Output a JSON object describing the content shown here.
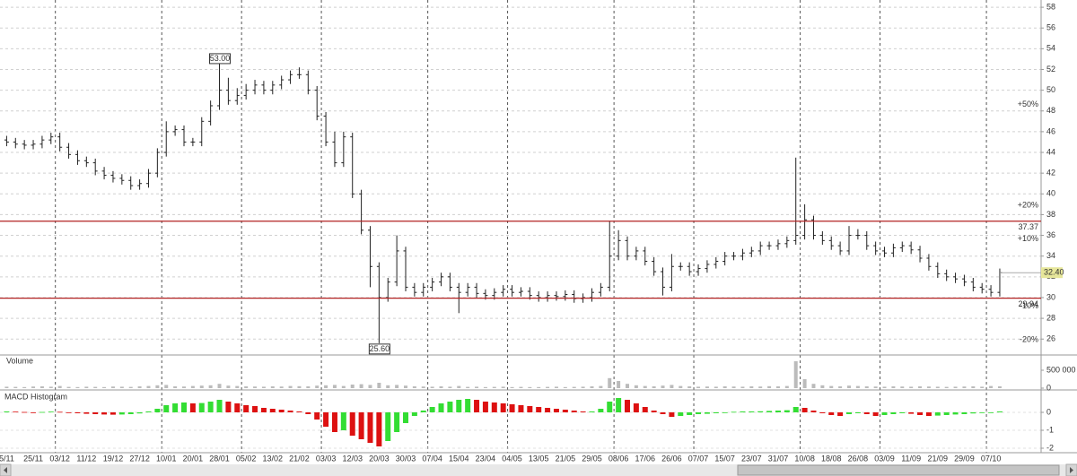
{
  "chart_data": [
    {
      "type": "ohlc",
      "categories": [
        "5/11",
        null,
        null,
        "25/11",
        null,
        null,
        "03/12",
        null,
        null,
        "11/12",
        null,
        null,
        "19/12",
        null,
        null,
        "27/12",
        null,
        null,
        "10/01",
        null,
        null,
        "20/01",
        null,
        null,
        "28/01",
        null,
        null,
        "05/02",
        null,
        null,
        "13/02",
        null,
        null,
        "21/02",
        null,
        null,
        "03/03",
        null,
        null,
        "12/03",
        null,
        null,
        "20/03",
        null,
        null,
        "30/03",
        null,
        null,
        "07/04",
        null,
        null,
        "15/04",
        null,
        null,
        "23/04",
        null,
        null,
        "04/05",
        null,
        null,
        "13/05",
        null,
        null,
        "21/05",
        null,
        null,
        "29/05",
        null,
        null,
        "08/06",
        null,
        null,
        "17/06",
        null,
        null,
        "26/06",
        null,
        null,
        "07/07",
        null,
        null,
        "15/07",
        null,
        null,
        "23/07",
        null,
        null,
        "31/07",
        null,
        null,
        "10/08",
        null,
        null,
        "18/08",
        null,
        null,
        "26/08",
        null,
        null,
        "03/09",
        null,
        null,
        "11/09",
        null,
        null,
        "21/09",
        null,
        null,
        "29/09",
        null,
        null,
        "07/10",
        null
      ],
      "open": [
        45.2,
        45.0,
        44.8,
        44.7,
        44.8,
        45.2,
        45.5,
        44.5,
        43.8,
        43.2,
        43.0,
        42.2,
        41.8,
        41.5,
        41.3,
        40.8,
        41.0,
        42.0,
        44.0,
        46.0,
        46.2,
        45.0,
        45.0,
        47.0,
        48.5,
        50.0,
        49.0,
        49.5,
        50.0,
        50.5,
        50.0,
        50.5,
        51.0,
        51.5,
        51.5,
        50.0,
        47.5,
        45.0,
        43.0,
        45.5,
        40.0,
        36.5,
        33.0,
        30.0,
        31.5,
        34.5,
        31.0,
        30.5,
        31.0,
        31.5,
        32.0,
        31.0,
        30.5,
        31.0,
        30.4,
        30.2,
        30.5,
        30.8,
        30.5,
        30.6,
        30.2,
        30.0,
        30.2,
        30.1,
        30.3,
        29.9,
        30.0,
        30.5,
        31.0,
        34.0,
        35.5,
        34.0,
        34.5,
        33.5,
        32.5,
        31.0,
        33.0,
        33.0,
        32.5,
        32.8,
        33.2,
        33.5,
        34.0,
        34.0,
        34.3,
        34.5,
        35.0,
        35.0,
        35.2,
        35.5,
        36.0,
        37.5,
        36.0,
        35.5,
        35.0,
        34.5,
        36.0,
        36.0,
        35.0,
        34.5,
        34.3,
        34.8,
        35.0,
        34.6,
        33.8,
        33.0,
        32.3,
        32.0,
        31.8,
        31.5,
        31.0,
        30.8,
        30.5
      ],
      "high": [
        45.6,
        45.4,
        45.2,
        45.2,
        45.6,
        45.9,
        45.9,
        44.9,
        44.2,
        43.6,
        43.4,
        42.6,
        42.2,
        41.9,
        41.7,
        41.4,
        42.4,
        44.4,
        47.0,
        46.6,
        46.6,
        45.4,
        47.4,
        49.0,
        53.0,
        51.2,
        50.2,
        50.6,
        51.0,
        50.9,
        50.9,
        51.4,
        51.9,
        52.2,
        51.9,
        50.4,
        47.9,
        46.0,
        46.0,
        45.9,
        40.4,
        36.9,
        33.4,
        31.9,
        36.0,
        34.9,
        31.4,
        31.4,
        31.9,
        32.4,
        32.4,
        31.4,
        31.4,
        31.4,
        30.8,
        30.9,
        31.2,
        31.2,
        31.0,
        31.0,
        30.6,
        30.6,
        30.6,
        30.7,
        30.7,
        30.4,
        30.9,
        31.4,
        37.4,
        36.5,
        35.9,
        34.9,
        34.9,
        33.9,
        32.9,
        34.2,
        33.4,
        33.4,
        33.2,
        33.6,
        33.9,
        34.4,
        34.4,
        34.7,
        34.9,
        35.4,
        35.4,
        35.6,
        35.9,
        43.5,
        39.0,
        37.9,
        36.4,
        35.9,
        35.4,
        36.9,
        36.6,
        36.4,
        35.4,
        34.9,
        35.2,
        35.4,
        35.4,
        35.0,
        34.2,
        33.4,
        32.7,
        32.4,
        32.2,
        31.9,
        31.4,
        31.2,
        32.8
      ],
      "low": [
        44.6,
        44.4,
        44.3,
        44.3,
        44.4,
        44.8,
        44.1,
        43.4,
        42.8,
        42.6,
        41.8,
        41.4,
        41.1,
        40.9,
        40.4,
        40.4,
        40.6,
        41.6,
        43.6,
        45.6,
        44.6,
        44.6,
        44.6,
        46.6,
        48.1,
        48.6,
        48.6,
        49.1,
        49.6,
        49.6,
        49.6,
        50.1,
        50.6,
        51.1,
        49.6,
        47.1,
        44.6,
        42.6,
        42.6,
        39.6,
        36.1,
        31.0,
        25.6,
        29.6,
        31.1,
        30.6,
        30.1,
        30.1,
        30.6,
        31.1,
        30.6,
        28.5,
        30.1,
        30.0,
        29.8,
        29.8,
        30.1,
        30.1,
        30.1,
        29.8,
        29.6,
        29.6,
        29.7,
        29.7,
        29.5,
        29.5,
        29.6,
        30.1,
        30.6,
        33.6,
        33.6,
        33.6,
        33.1,
        32.1,
        30.2,
        30.6,
        32.6,
        32.1,
        32.1,
        32.4,
        32.8,
        33.1,
        33.6,
        33.6,
        33.9,
        34.1,
        34.6,
        34.6,
        34.8,
        35.1,
        35.6,
        35.6,
        35.1,
        34.6,
        34.1,
        34.1,
        35.6,
        34.6,
        34.1,
        33.9,
        33.9,
        34.4,
        34.2,
        33.4,
        32.6,
        31.9,
        31.6,
        31.4,
        31.1,
        30.6,
        30.4,
        30.1,
        30.1
      ],
      "close": [
        45.0,
        44.8,
        44.7,
        44.8,
        45.2,
        45.5,
        44.5,
        43.8,
        43.2,
        43.0,
        42.2,
        41.8,
        41.5,
        41.3,
        40.8,
        41.0,
        42.0,
        44.0,
        46.0,
        46.2,
        45.0,
        45.0,
        47.0,
        48.5,
        50.0,
        49.0,
        49.5,
        50.0,
        50.5,
        50.0,
        50.5,
        51.0,
        51.5,
        51.5,
        50.0,
        47.5,
        45.0,
        43.0,
        45.5,
        40.0,
        36.5,
        33.0,
        30.0,
        31.5,
        34.5,
        31.0,
        30.5,
        31.0,
        31.5,
        32.0,
        31.0,
        30.5,
        31.0,
        30.4,
        30.2,
        30.5,
        30.8,
        30.5,
        30.6,
        30.2,
        30.0,
        30.2,
        30.1,
        30.3,
        29.9,
        30.0,
        30.5,
        31.0,
        34.0,
        35.5,
        34.0,
        34.5,
        33.5,
        32.5,
        31.0,
        33.0,
        33.0,
        32.5,
        32.8,
        33.2,
        33.5,
        34.0,
        34.0,
        34.3,
        34.5,
        35.0,
        35.0,
        35.2,
        35.5,
        36.0,
        37.5,
        36.0,
        35.5,
        35.0,
        34.5,
        36.0,
        36.0,
        35.0,
        34.5,
        34.3,
        34.8,
        35.0,
        34.6,
        33.8,
        33.0,
        32.3,
        32.0,
        31.8,
        31.5,
        31.0,
        30.8,
        30.5,
        32.4
      ],
      "color": "#222222",
      "ylim": [
        24.55,
        58.7
      ],
      "yticks": [
        26,
        28,
        30,
        32,
        34,
        36,
        38,
        40,
        42,
        44,
        46,
        48,
        50,
        52,
        54,
        56,
        58
      ],
      "grid": true,
      "hlines": [
        37.37,
        29.94
      ],
      "hline_color": "#b22222",
      "pct_labels": [
        {
          "value": 48.6,
          "label": "+50%"
        },
        {
          "value": 38.88,
          "label": "+20%"
        },
        {
          "value": 35.64,
          "label": "+10%"
        },
        {
          "value": 29.16,
          "label": "-10%"
        },
        {
          "value": 25.92,
          "label": "-20%"
        }
      ],
      "last_price": {
        "value": 32.4,
        "label": "32.40"
      },
      "annotations": [
        {
          "index": 24,
          "value": 53.0,
          "label": "53.00"
        },
        {
          "index": 42,
          "value": 25.6,
          "label": "25.60"
        }
      ]
    },
    {
      "type": "bar",
      "title": "Volume",
      "values": [
        40000,
        35000,
        30000,
        45000,
        50000,
        40000,
        60000,
        35000,
        30000,
        40000,
        35000,
        30000,
        45000,
        40000,
        35000,
        50000,
        60000,
        80000,
        90000,
        50000,
        45000,
        60000,
        70000,
        80000,
        120000,
        70000,
        60000,
        50000,
        45000,
        40000,
        50000,
        45000,
        60000,
        55000,
        50000,
        70000,
        80000,
        90000,
        60000,
        100000,
        110000,
        90000,
        150000,
        80000,
        90000,
        70000,
        50000,
        45000,
        40000,
        50000,
        40000,
        60000,
        35000,
        40000,
        30000,
        35000,
        40000,
        30000,
        35000,
        30000,
        30000,
        35000,
        40000,
        30000,
        35000,
        40000,
        50000,
        60000,
        280000,
        200000,
        120000,
        80000,
        60000,
        50000,
        70000,
        90000,
        60000,
        50000,
        40000,
        45000,
        40000,
        50000,
        45000,
        40000,
        50000,
        45000,
        55000,
        50000,
        60000,
        750000,
        250000,
        120000,
        80000,
        60000,
        50000,
        70000,
        60000,
        50000,
        45000,
        40000,
        50000,
        45000,
        40000,
        50000,
        45000,
        40000,
        35000,
        40000,
        45000,
        50000,
        40000,
        60000,
        50000
      ],
      "color": "#bbbbbb",
      "ylim": [
        0,
        875000
      ],
      "yticks": [
        0,
        {
          "value": 500000,
          "label": "500 000"
        }
      ]
    },
    {
      "type": "histogram_macd",
      "title": "MACD Histogram",
      "values": [
        0.05,
        0.04,
        0.02,
        0.0,
        0.02,
        0.04,
        0.03,
        -0.02,
        -0.05,
        -0.08,
        -0.1,
        -0.12,
        -0.13,
        -0.12,
        -0.1,
        -0.06,
        0.05,
        0.2,
        0.4,
        0.5,
        0.55,
        0.5,
        0.52,
        0.6,
        0.7,
        0.6,
        0.5,
        0.4,
        0.35,
        0.25,
        0.2,
        0.15,
        0.1,
        0.05,
        -0.1,
        -0.4,
        -0.8,
        -1.1,
        -1.0,
        -1.3,
        -1.5,
        -1.7,
        -1.9,
        -1.6,
        -1.1,
        -0.6,
        -0.2,
        0.1,
        0.3,
        0.5,
        0.6,
        0.7,
        0.75,
        0.7,
        0.6,
        0.55,
        0.5,
        0.45,
        0.4,
        0.35,
        0.3,
        0.25,
        0.2,
        0.15,
        0.1,
        0.05,
        0.05,
        0.2,
        0.6,
        0.8,
        0.7,
        0.5,
        0.3,
        0.1,
        -0.1,
        -0.25,
        -0.2,
        -0.15,
        -0.1,
        -0.08,
        -0.05,
        0.0,
        0.03,
        0.05,
        0.05,
        0.06,
        0.08,
        0.1,
        0.12,
        0.3,
        0.25,
        0.1,
        -0.05,
        -0.15,
        -0.2,
        -0.1,
        -0.05,
        -0.1,
        -0.2,
        -0.15,
        -0.1,
        -0.05,
        -0.08,
        -0.15,
        -0.2,
        -0.18,
        -0.15,
        -0.12,
        -0.1,
        -0.06,
        -0.03,
        0.0,
        0.05
      ],
      "up_color": "#33dd33",
      "down_color": "#dd1111",
      "ylim": [
        -2.25,
        1.15
      ],
      "yticks": [
        -2,
        -1,
        0
      ]
    }
  ]
}
